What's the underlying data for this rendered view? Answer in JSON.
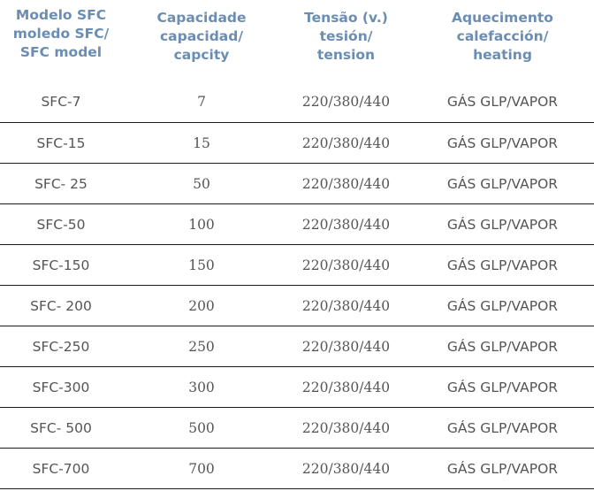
{
  "table": {
    "headers": [
      {
        "lines": [
          "Modelo SFC",
          "moledo SFC/",
          "SFC model"
        ]
      },
      {
        "lines": [
          "Capacidade",
          "capacidad/",
          "capcity"
        ]
      },
      {
        "lines": [
          "Tensão (v.)",
          "tesión/",
          "tension"
        ]
      },
      {
        "lines": [
          "Aquecimento",
          "calefacción/",
          "heating"
        ]
      }
    ],
    "rows": [
      {
        "model": "SFC-7",
        "capacity": "7",
        "voltage": "220/380/440",
        "heating": "GÁS GLP/VAPOR"
      },
      {
        "model": "SFC-15",
        "capacity": "15",
        "voltage": "220/380/440",
        "heating": "GÁS GLP/VAPOR"
      },
      {
        "model": "SFC- 25",
        "capacity": "50",
        "voltage": "220/380/440",
        "heating": "GÁS GLP/VAPOR"
      },
      {
        "model": "SFC-50",
        "capacity": "100",
        "voltage": "220/380/440",
        "heating": "GÁS GLP/VAPOR"
      },
      {
        "model": "SFC-150",
        "capacity": "150",
        "voltage": "220/380/440",
        "heating": "GÁS GLP/VAPOR"
      },
      {
        "model": "SFC- 200",
        "capacity": "200",
        "voltage": "220/380/440",
        "heating": "GÁS GLP/VAPOR"
      },
      {
        "model": "SFC-250",
        "capacity": "250",
        "voltage": "220/380/440",
        "heating": "GÁS GLP/VAPOR"
      },
      {
        "model": "SFC-300",
        "capacity": "300",
        "voltage": "220/380/440",
        "heating": "GÁS GLP/VAPOR"
      },
      {
        "model": "SFC- 500",
        "capacity": "500",
        "voltage": "220/380/440",
        "heating": "GÁS GLP/VAPOR"
      },
      {
        "model": "SFC-700",
        "capacity": "700",
        "voltage": "220/380/440",
        "heating": "GÁS GLP/VAPOR"
      }
    ]
  },
  "colors": {
    "header_text": "#6b8db3",
    "body_text": "#555555",
    "row_divider": "#1a1a1a"
  }
}
